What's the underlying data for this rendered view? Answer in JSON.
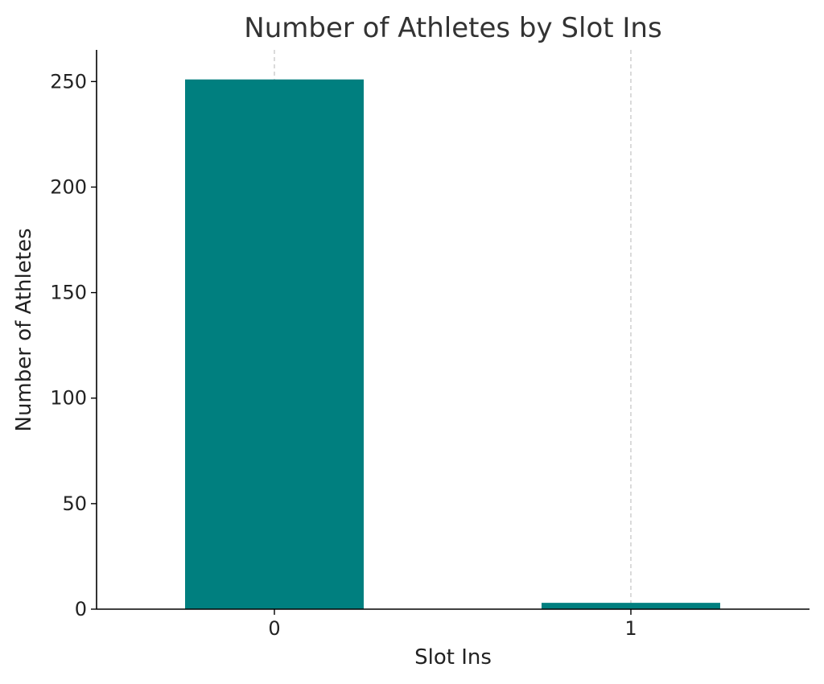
{
  "chart_data": {
    "type": "bar",
    "title": "Number of Athletes by Slot Ins",
    "xlabel": "Slot Ins",
    "ylabel": "Number of Athletes",
    "categories": [
      "0",
      "1"
    ],
    "values": [
      251,
      3
    ],
    "ylim": [
      0,
      265
    ],
    "yticks": [
      0,
      50,
      100,
      150,
      200,
      250
    ],
    "grid": {
      "x": true,
      "y": false,
      "style": "dashed"
    },
    "bar_color": "#007f7f"
  }
}
